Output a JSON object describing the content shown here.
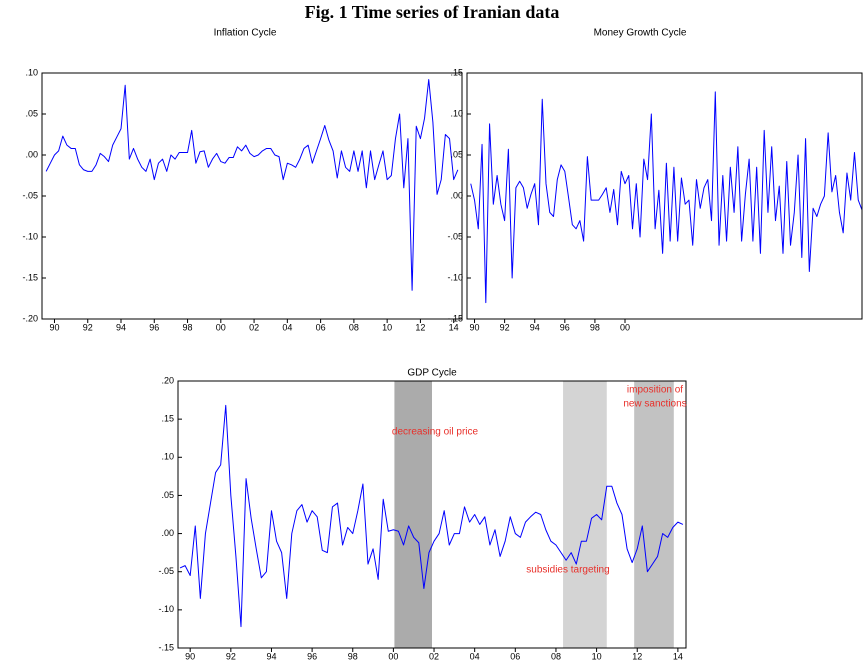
{
  "figure_title": "Fig. 1 Time series of Iranian data",
  "chart_data": [
    {
      "type": "line",
      "title": "Inflation Cycle",
      "x": [
        1989.5,
        1989.75,
        1990,
        1990.25,
        1990.5,
        1990.75,
        1991,
        1991.25,
        1991.5,
        1991.75,
        1992,
        1992.25,
        1992.5,
        1992.75,
        1993,
        1993.25,
        1993.5,
        1993.75,
        1994,
        1994.25,
        1994.5,
        1994.75,
        1995,
        1995.25,
        1995.5,
        1995.75,
        1996,
        1996.25,
        1996.5,
        1996.75,
        1997,
        1997.25,
        1997.5,
        1997.75,
        1998,
        1998.25,
        1998.5,
        1998.75,
        1999,
        1999.25,
        1999.5,
        1999.75,
        2000,
        2000.25,
        2000.5,
        2000.75,
        2001,
        2001.25,
        2001.5,
        2001.75,
        2002,
        2002.25,
        2002.5,
        2002.75,
        2003,
        2003.25,
        2003.5,
        2003.75,
        2004,
        2004.25,
        2004.5,
        2004.75,
        2005,
        2005.25,
        2005.5,
        2005.75,
        2006,
        2006.25,
        2006.5,
        2006.75,
        2007,
        2007.25,
        2007.5,
        2007.75,
        2008,
        2008.25,
        2008.5,
        2008.75,
        2009,
        2009.25,
        2009.5,
        2009.75,
        2010,
        2010.25,
        2010.5,
        2010.75,
        2011,
        2011.25,
        2011.5,
        2011.75,
        2012,
        2012.25,
        2012.5,
        2012.75,
        2013,
        2013.25,
        2013.5,
        2013.75,
        2014,
        2014.25
      ],
      "series": [
        {
          "color": "#0000ff",
          "values": [
            -0.02,
            -0.01,
            0,
            0.005,
            0.023,
            0.012,
            0.008,
            0.008,
            -0.012,
            -0.018,
            -0.02,
            -0.02,
            -0.012,
            0.002,
            -0.002,
            -0.008,
            0.012,
            0.022,
            0.032,
            0.085,
            -0.005,
            0.008,
            -0.005,
            -0.015,
            -0.02,
            -0.005,
            -0.03,
            -0.01,
            -0.005,
            -0.02,
            0,
            -0.005,
            0.003,
            0.003,
            0.003,
            0.03,
            -0.01,
            0.004,
            0.005,
            -0.015,
            -0.005,
            0.002,
            -0.008,
            -0.01,
            -0.003,
            -0.003,
            0.01,
            0.005,
            0.012,
            0.002,
            -0.002,
            0,
            0.005,
            0.008,
            0.008,
            0,
            -0.002,
            -0.03,
            -0.01,
            -0.012,
            -0.015,
            -0.005,
            0.008,
            0.012,
            -0.01,
            0.005,
            0.02,
            0.036,
            0.018,
            0.005,
            -0.028,
            0.005,
            -0.015,
            -0.02,
            0.005,
            -0.02,
            0.005,
            -0.04,
            0.005,
            -0.03,
            -0.012,
            0.005,
            -0.03,
            -0.025,
            0.02,
            0.05,
            -0.04,
            0.02,
            -0.165,
            0.035,
            0.02,
            0.045,
            0.092,
            0.04,
            -0.048,
            -0.03,
            0.025,
            0.02,
            -0.03,
            -0.018
          ]
        }
      ],
      "xlim": [
        1989.25,
        2014.5
      ],
      "xticks": [
        {
          "value": 1990,
          "label": "90"
        },
        {
          "value": 1992,
          "label": "92"
        },
        {
          "value": 1994,
          "label": "94"
        },
        {
          "value": 1996,
          "label": "96"
        },
        {
          "value": 1998,
          "label": "98"
        },
        {
          "value": 2000,
          "label": "00"
        },
        {
          "value": 2002,
          "label": "02"
        },
        {
          "value": 2004,
          "label": "04"
        },
        {
          "value": 2006,
          "label": "06"
        },
        {
          "value": 2008,
          "label": "08"
        },
        {
          "value": 2010,
          "label": "10"
        },
        {
          "value": 2012,
          "label": "12"
        },
        {
          "value": 2014,
          "label": "14"
        }
      ],
      "ylim": [
        -0.2,
        0.1
      ],
      "yticks": [
        {
          "value": 0.1,
          "label": ".10"
        },
        {
          "value": 0.05,
          "label": ".05"
        },
        {
          "value": 0,
          "label": ".00"
        },
        {
          "value": -0.05,
          "label": "-.05"
        },
        {
          "value": -0.1,
          "label": "-.10"
        },
        {
          "value": -0.15,
          "label": "-.15"
        },
        {
          "value": -0.2,
          "label": "-.20"
        }
      ],
      "grid": false
    },
    {
      "type": "line",
      "title": "Money Growth Cycle",
      "x": [
        1989.75,
        1990,
        1990.25,
        1990.5,
        1990.75,
        1991,
        1991.25,
        1991.5,
        1991.75,
        1992,
        1992.25,
        1992.5,
        1992.75,
        1993,
        1993.25,
        1993.5,
        1993.75,
        1994,
        1994.25,
        1994.5,
        1994.75,
        1995,
        1995.25,
        1995.5,
        1995.75,
        1996,
        1996.25,
        1996.5,
        1996.75,
        1997,
        1997.25,
        1997.5,
        1997.75,
        1998,
        1998.25,
        1998.5,
        1998.75,
        1999,
        1999.25,
        1999.5,
        1999.75,
        2000,
        2000.25,
        2000.5,
        2000.75,
        2001,
        2001.25,
        2001.5,
        2001.75,
        2002,
        2002.25,
        2002.5,
        2002.75,
        2003,
        2003.25,
        2003.5,
        2003.75,
        2004,
        2004.25,
        2004.5,
        2004.75,
        2005,
        2005.25,
        2005.5,
        2005.75,
        2006,
        2006.25,
        2006.5,
        2006.75,
        2007,
        2007.25,
        2007.5,
        2007.75,
        2008,
        2008.25,
        2008.5,
        2008.75,
        2009,
        2009.25,
        2009.5,
        2009.75,
        2010,
        2010.25,
        2010.5,
        2010.75,
        2011,
        2011.25,
        2011.5,
        2011.75,
        2012,
        2012.25,
        2012.5,
        2012.75,
        2013,
        2013.25,
        2013.5,
        2013.75,
        2014,
        2014.25,
        2014.5,
        2014.75,
        2015,
        2015.25,
        2015.5,
        2015.75
      ],
      "series": [
        {
          "color": "#0000ff",
          "values": [
            0.015,
            -0.005,
            -0.04,
            0.063,
            -0.13,
            0.088,
            -0.01,
            0.025,
            -0.01,
            -0.03,
            0.057,
            -0.1,
            0.01,
            0.018,
            0.01,
            -0.015,
            0.002,
            0.015,
            -0.035,
            0.118,
            0.015,
            -0.02,
            -0.025,
            0.02,
            0.038,
            0.03,
            -0.002,
            -0.035,
            -0.04,
            -0.03,
            -0.055,
            0.048,
            -0.005,
            -0.005,
            -0.005,
            0.002,
            0.01,
            -0.02,
            0.008,
            -0.035,
            0.03,
            0.015,
            0.025,
            -0.04,
            0.015,
            -0.05,
            0.045,
            0.02,
            0.1,
            -0.04,
            0.007,
            -0.07,
            0.04,
            -0.055,
            0.035,
            -0.055,
            0.022,
            -0.01,
            -0.005,
            -0.06,
            0.02,
            -0.015,
            0.01,
            0.02,
            -0.03,
            0.127,
            -0.06,
            0.025,
            -0.055,
            0.035,
            -0.02,
            0.06,
            -0.055,
            0.002,
            0.045,
            -0.055,
            0.035,
            -0.07,
            0.08,
            -0.02,
            0.06,
            -0.03,
            0.012,
            -0.07,
            0.042,
            -0.06,
            -0.02,
            0.05,
            -0.075,
            0.07,
            -0.092,
            -0.015,
            -0.025,
            -0.01,
            0,
            0.077,
            0.005,
            0.025,
            -0.02,
            -0.045,
            0.028,
            -0.005,
            0.053,
            -0.005,
            -0.017
          ]
        }
      ],
      "xlim": [
        1989.5,
        2015.75
      ],
      "xticks": [
        {
          "value": 1990,
          "label": "90"
        },
        {
          "value": 1992,
          "label": "92"
        },
        {
          "value": 1994,
          "label": "94"
        },
        {
          "value": 1996,
          "label": "96"
        },
        {
          "value": 1998,
          "label": "98"
        },
        {
          "value": 2000,
          "label": "00"
        }
      ],
      "ylim": [
        -0.15,
        0.15
      ],
      "yticks": [
        {
          "value": 0.15,
          "label": ".15"
        },
        {
          "value": 0.1,
          "label": ".10"
        },
        {
          "value": 0.05,
          "label": ".05"
        },
        {
          "value": 0,
          "label": ".00"
        },
        {
          "value": -0.05,
          "label": "-.05"
        },
        {
          "value": -0.1,
          "label": "-.10"
        },
        {
          "value": -0.15,
          "label": "-.15"
        }
      ],
      "grid": false
    },
    {
      "type": "line",
      "title": "GDP Cycle",
      "x": [
        1989.5,
        1989.75,
        1990,
        1990.25,
        1990.5,
        1990.75,
        1991,
        1991.25,
        1991.5,
        1991.75,
        1992,
        1992.25,
        1992.5,
        1992.75,
        1993,
        1993.25,
        1993.5,
        1993.75,
        1994,
        1994.25,
        1994.5,
        1994.75,
        1995,
        1995.25,
        1995.5,
        1995.75,
        1996,
        1996.25,
        1996.5,
        1996.75,
        1997,
        1997.25,
        1997.5,
        1997.75,
        1998,
        1998.25,
        1998.5,
        1998.75,
        1999,
        1999.25,
        1999.5,
        1999.75,
        2000,
        2000.25,
        2000.5,
        2000.75,
        2001,
        2001.25,
        2001.5,
        2001.75,
        2002,
        2002.25,
        2002.5,
        2002.75,
        2003,
        2003.25,
        2003.5,
        2003.75,
        2004,
        2004.25,
        2004.5,
        2004.75,
        2005,
        2005.25,
        2005.5,
        2005.75,
        2006,
        2006.25,
        2006.5,
        2006.75,
        2007,
        2007.25,
        2007.5,
        2007.75,
        2008,
        2008.25,
        2008.5,
        2008.75,
        2009,
        2009.25,
        2009.5,
        2009.75,
        2010,
        2010.25,
        2010.5,
        2010.75,
        2011,
        2011.25,
        2011.5,
        2011.75,
        2012,
        2012.25,
        2012.5,
        2012.75,
        2013,
        2013.25,
        2013.5,
        2013.75,
        2014,
        2014.25
      ],
      "series": [
        {
          "color": "#0000ff",
          "values": [
            -0.045,
            -0.042,
            -0.055,
            0.01,
            -0.085,
            0,
            0.04,
            0.08,
            0.09,
            0.168,
            0.05,
            -0.03,
            -0.122,
            0.072,
            0.02,
            -0.02,
            -0.058,
            -0.05,
            0.03,
            -0.01,
            -0.025,
            -0.085,
            0,
            0.03,
            0.038,
            0.015,
            0.03,
            0.022,
            -0.022,
            -0.025,
            0.035,
            0.04,
            -0.015,
            0.008,
            0,
            0.03,
            0.065,
            -0.04,
            -0.02,
            -0.06,
            0.045,
            0.003,
            0.005,
            0.003,
            -0.015,
            0.01,
            -0.005,
            -0.012,
            -0.072,
            -0.025,
            -0.01,
            0,
            0.03,
            -0.015,
            0,
            0,
            0.035,
            0.015,
            0.025,
            0.012,
            0.022,
            -0.015,
            0.005,
            -0.03,
            -0.01,
            0.022,
            0,
            -0.005,
            0.015,
            0.022,
            0.028,
            0.025,
            0.005,
            -0.01,
            -0.015,
            -0.025,
            -0.035,
            -0.025,
            -0.04,
            -0.01,
            -0.01,
            0.02,
            0.025,
            0.018,
            0.062,
            0.062,
            0.04,
            0.025,
            -0.02,
            -0.038,
            -0.02,
            0.01,
            -0.05,
            -0.04,
            -0.03,
            0,
            -0.005,
            0.008,
            0.015,
            0.012
          ]
        }
      ],
      "xlim": [
        1989.4,
        2014.4
      ],
      "xticks": [
        {
          "value": 1990,
          "label": "90"
        },
        {
          "value": 1992,
          "label": "92"
        },
        {
          "value": 1994,
          "label": "94"
        },
        {
          "value": 1996,
          "label": "96"
        },
        {
          "value": 1998,
          "label": "98"
        },
        {
          "value": 2000,
          "label": "00"
        },
        {
          "value": 2002,
          "label": "02"
        },
        {
          "value": 2004,
          "label": "04"
        },
        {
          "value": 2006,
          "label": "06"
        },
        {
          "value": 2008,
          "label": "08"
        },
        {
          "value": 2010,
          "label": "10"
        },
        {
          "value": 2012,
          "label": "12"
        },
        {
          "value": 2014,
          "label": "14"
        }
      ],
      "ylim": [
        -0.15,
        0.2
      ],
      "yticks": [
        {
          "value": 0.2,
          "label": ".20"
        },
        {
          "value": 0.15,
          "label": ".15"
        },
        {
          "value": 0.1,
          "label": ".10"
        },
        {
          "value": 0.05,
          "label": ".05"
        },
        {
          "value": 0,
          "label": ".00"
        },
        {
          "value": -0.05,
          "label": "-.05"
        },
        {
          "value": -0.1,
          "label": "-.10"
        },
        {
          "value": -0.15,
          "label": "-.15"
        }
      ],
      "grid": false,
      "shaded_regions": [
        {
          "x": [
            2000.05,
            2001.9
          ],
          "color": "#ababab"
        },
        {
          "x": [
            2008.35,
            2010.5
          ],
          "color": "#d4d4d4"
        },
        {
          "x": [
            2011.85,
            2013.8
          ],
          "color": "#c2c2c2"
        }
      ],
      "annotation_color": "#e8302a",
      "annotations": [
        {
          "lines": [
            "decreasing oil price"
          ]
        },
        {
          "lines": [
            "subsidies targeting"
          ]
        },
        {
          "lines": [
            "imposition of",
            "new sanctions"
          ]
        }
      ]
    }
  ]
}
